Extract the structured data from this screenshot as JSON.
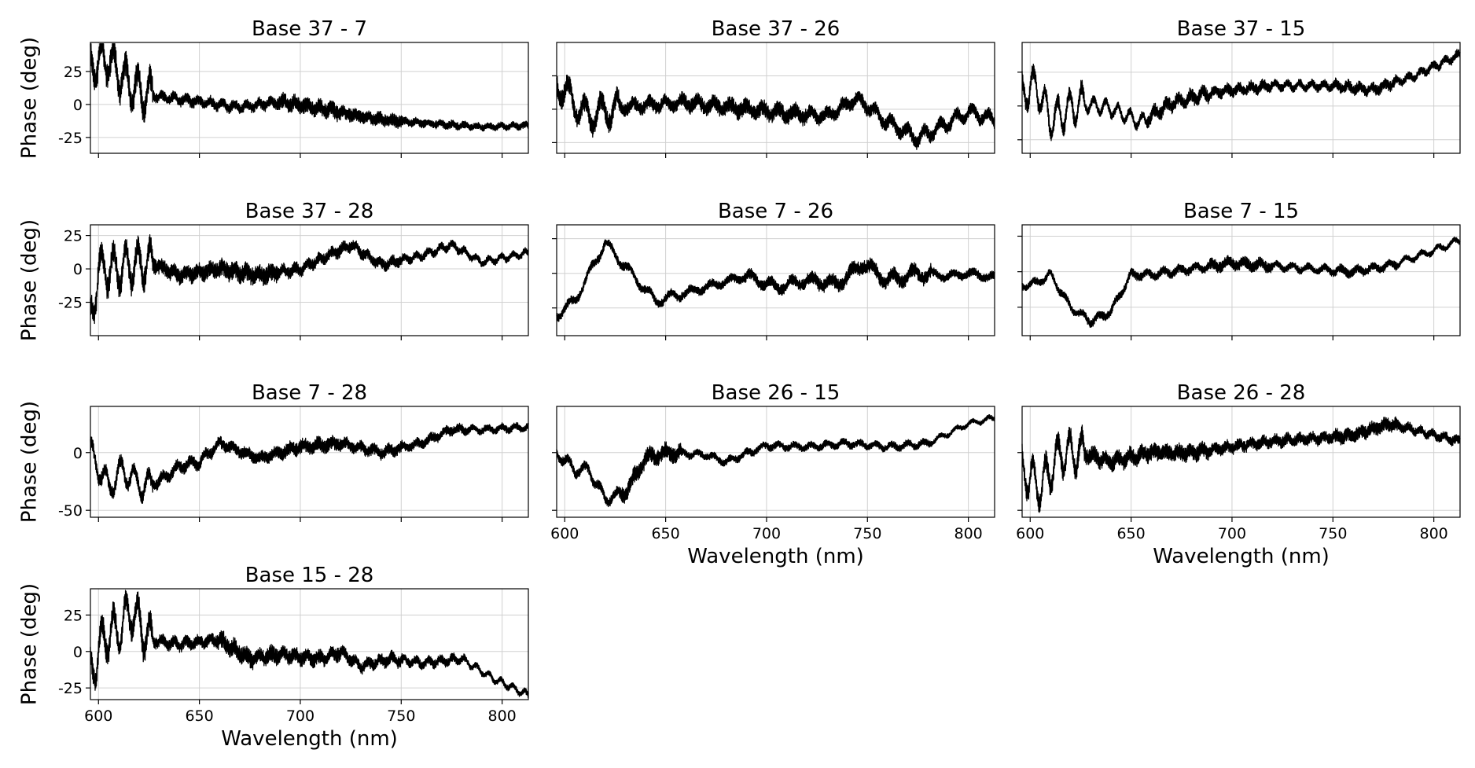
{
  "figure": {
    "background": "#ffffff",
    "line_color": "#000000",
    "grid_color": "#d0d0d0"
  },
  "chart_data": [
    {
      "type": "line",
      "title": "Base 37 - 7",
      "xlabel": "",
      "ylabel": "Phase (deg)",
      "xlim": [
        596,
        813
      ],
      "ylim": [
        -37,
        47
      ],
      "xticks": [
        600,
        650,
        700,
        750,
        800
      ],
      "xtick_labels_shown": false,
      "yticks": [
        -25,
        0,
        25
      ],
      "ytick_labels_shown": true,
      "grid": true,
      "trend": {
        "x": [
          596,
          605,
          612,
          620,
          630,
          650,
          670,
          690,
          710,
          730,
          750,
          770,
          790,
          813
        ],
        "y": [
          30,
          35,
          20,
          10,
          6,
          2,
          -2,
          2,
          -3,
          -9,
          -13,
          -15,
          -17,
          -16
        ]
      },
      "noise": {
        "high_freq_amp": [
          20,
          8,
          8,
          12,
          10,
          6,
          5
        ],
        "osc_amp": [
          14,
          2,
          2,
          2,
          1,
          1,
          1
        ],
        "osc_period_nm": 6
      }
    },
    {
      "type": "line",
      "title": "Base 37 - 26",
      "xlabel": "",
      "ylabel": "",
      "xlim": [
        596,
        813
      ],
      "ylim": [
        -33,
        50
      ],
      "xticks": [
        600,
        650,
        700,
        750,
        800
      ],
      "xtick_labels_shown": false,
      "yticks": [
        -25,
        0,
        25
      ],
      "ytick_labels_shown": false,
      "grid": true,
      "trend": {
        "x": [
          596,
          602,
          610,
          630,
          660,
          690,
          710,
          730,
          745,
          760,
          775,
          790,
          800,
          813
        ],
        "y": [
          20,
          10,
          -5,
          2,
          5,
          0,
          -3,
          -5,
          8,
          -10,
          -22,
          -10,
          -2,
          -8
        ]
      },
      "noise": {
        "high_freq_amp": [
          15,
          10,
          12,
          12,
          10,
          10,
          9
        ],
        "osc_amp": [
          10,
          3,
          3,
          3,
          3,
          4,
          4
        ],
        "osc_period_nm": 8
      }
    },
    {
      "type": "line",
      "title": "Base 37 - 15",
      "xlabel": "",
      "ylabel": "",
      "xlim": [
        596,
        813
      ],
      "ylim": [
        -35,
        47
      ],
      "xticks": [
        600,
        650,
        700,
        750,
        800
      ],
      "xtick_labels_shown": false,
      "yticks": [
        -25,
        0,
        25
      ],
      "ytick_labels_shown": false,
      "grid": true,
      "trend": {
        "x": [
          596,
          603,
          610,
          625,
          640,
          655,
          670,
          690,
          720,
          750,
          770,
          790,
          813
        ],
        "y": [
          10,
          15,
          -10,
          2,
          -2,
          -12,
          2,
          10,
          15,
          15,
          12,
          22,
          38
        ]
      },
      "noise": {
        "high_freq_amp": [
          12,
          6,
          10,
          8,
          6,
          8,
          6
        ],
        "osc_amp": [
          12,
          5,
          3,
          2,
          2,
          2,
          2
        ],
        "osc_period_nm": 6
      }
    },
    {
      "type": "line",
      "title": "Base 37 - 28",
      "xlabel": "",
      "ylabel": "Phase (deg)",
      "xlim": [
        596,
        813
      ],
      "ylim": [
        -50,
        33
      ],
      "xticks": [
        600,
        650,
        700,
        750,
        800
      ],
      "xtick_labels_shown": false,
      "yticks": [
        -25,
        0,
        25
      ],
      "ytick_labels_shown": true,
      "grid": true,
      "trend": {
        "x": [
          596,
          600,
          610,
          625,
          640,
          660,
          680,
          700,
          725,
          740,
          760,
          775,
          790,
          813
        ],
        "y": [
          -40,
          0,
          0,
          5,
          -5,
          0,
          -5,
          0,
          18,
          3,
          10,
          18,
          5,
          12
        ]
      },
      "noise": {
        "high_freq_amp": [
          18,
          12,
          14,
          9,
          8,
          6,
          5
        ],
        "osc_amp": [
          14,
          2,
          2,
          2,
          2,
          2,
          2
        ],
        "osc_period_nm": 6
      }
    },
    {
      "type": "line",
      "title": "Base 7 - 26",
      "xlabel": "",
      "ylabel": "",
      "xlim": [
        596,
        813
      ],
      "ylim": [
        -45,
        35
      ],
      "xticks": [
        600,
        650,
        700,
        750,
        800
      ],
      "xtick_labels_shown": false,
      "yticks": [
        -25,
        0,
        25
      ],
      "ytick_labels_shown": false,
      "grid": true,
      "trend": {
        "x": [
          596,
          605,
          620,
          630,
          645,
          665,
          690,
          705,
          720,
          735,
          748,
          760,
          775,
          790,
          800,
          813
        ],
        "y": [
          -30,
          -20,
          22,
          5,
          -20,
          -12,
          -2,
          -10,
          -5,
          -8,
          7,
          -5,
          0,
          -2,
          0,
          -3
        ]
      },
      "noise": {
        "high_freq_amp": [
          6,
          6,
          6,
          8,
          10,
          10,
          6
        ],
        "osc_amp": [
          3,
          3,
          2,
          3,
          3,
          4,
          2
        ],
        "osc_period_nm": 10
      }
    },
    {
      "type": "line",
      "title": "Base 7 - 15",
      "xlabel": "",
      "ylabel": "",
      "xlim": [
        596,
        813
      ],
      "ylim": [
        -45,
        33
      ],
      "xticks": [
        600,
        650,
        700,
        750,
        800
      ],
      "xtick_labels_shown": false,
      "yticks": [
        -25,
        0,
        25
      ],
      "ytick_labels_shown": false,
      "grid": true,
      "trend": {
        "x": [
          596,
          603,
          610,
          620,
          630,
          640,
          650,
          660,
          680,
          700,
          720,
          740,
          760,
          780,
          800,
          813
        ],
        "y": [
          -10,
          -8,
          -2,
          -25,
          -35,
          -28,
          -2,
          -2,
          2,
          6,
          4,
          2,
          0,
          5,
          15,
          22
        ]
      },
      "noise": {
        "high_freq_amp": [
          5,
          6,
          6,
          8,
          5,
          6,
          4
        ],
        "osc_amp": [
          2,
          2,
          2,
          2,
          2,
          2,
          2
        ],
        "osc_period_nm": 8
      }
    },
    {
      "type": "line",
      "title": "Base 7 - 28",
      "xlabel": "",
      "ylabel": "Phase (deg)",
      "xlim": [
        596,
        813
      ],
      "ylim": [
        -56,
        40
      ],
      "xticks": [
        600,
        650,
        700,
        750,
        800
      ],
      "xtick_labels_shown": false,
      "yticks": [
        -50,
        0
      ],
      "ytick_labels_shown": true,
      "grid": true,
      "trend": {
        "x": [
          596,
          605,
          612,
          622,
          630,
          640,
          650,
          660,
          680,
          700,
          720,
          740,
          760,
          775,
          790,
          813
        ],
        "y": [
          0,
          -30,
          -15,
          -30,
          -25,
          -12,
          -8,
          8,
          -5,
          5,
          8,
          0,
          8,
          20,
          20,
          22
        ]
      },
      "noise": {
        "high_freq_amp": [
          12,
          10,
          10,
          12,
          10,
          8,
          6
        ],
        "osc_amp": [
          10,
          3,
          2,
          2,
          2,
          2,
          2
        ],
        "osc_period_nm": 7
      }
    },
    {
      "type": "line",
      "title": "Base 26 - 15",
      "xlabel": "Wavelength (nm)",
      "ylabel": "",
      "xlim": [
        596,
        813
      ],
      "ylim": [
        -56,
        40
      ],
      "xticks": [
        600,
        650,
        700,
        750,
        800
      ],
      "xtick_labels_shown": true,
      "yticks": [
        -50,
        0
      ],
      "ytick_labels_shown": false,
      "grid": true,
      "trend": {
        "x": [
          596,
          605,
          612,
          620,
          630,
          640,
          650,
          670,
          680,
          700,
          720,
          740,
          760,
          780,
          800,
          813
        ],
        "y": [
          0,
          -15,
          -15,
          -40,
          -35,
          -5,
          0,
          -2,
          -8,
          6,
          5,
          8,
          5,
          8,
          25,
          30
        ]
      },
      "noise": {
        "high_freq_amp": [
          8,
          14,
          6,
          6,
          6,
          6,
          4
        ],
        "osc_amp": [
          4,
          3,
          2,
          2,
          2,
          2,
          2
        ],
        "osc_period_nm": 8
      }
    },
    {
      "type": "line",
      "title": "Base 26 - 28",
      "xlabel": "Wavelength (nm)",
      "ylabel": "",
      "xlim": [
        596,
        813
      ],
      "ylim": [
        -56,
        40
      ],
      "xticks": [
        600,
        650,
        700,
        750,
        800
      ],
      "xtick_labels_shown": true,
      "yticks": [
        -50,
        0
      ],
      "ytick_labels_shown": false,
      "grid": true,
      "trend": {
        "x": [
          596,
          605,
          615,
          625,
          640,
          660,
          680,
          700,
          720,
          740,
          760,
          778,
          790,
          800,
          813
        ],
        "y": [
          -15,
          -30,
          0,
          0,
          -8,
          0,
          0,
          5,
          10,
          12,
          15,
          25,
          20,
          15,
          10
        ]
      },
      "noise": {
        "high_freq_amp": [
          18,
          14,
          14,
          10,
          10,
          12,
          8
        ],
        "osc_amp": [
          16,
          3,
          2,
          2,
          2,
          2,
          2
        ],
        "osc_period_nm": 6
      }
    },
    {
      "type": "line",
      "title": "Base 15 - 28",
      "xlabel": "Wavelength (nm)",
      "ylabel": "Phase (deg)",
      "xlim": [
        596,
        813
      ],
      "ylim": [
        -33,
        43
      ],
      "xticks": [
        600,
        650,
        700,
        750,
        800
      ],
      "xtick_labels_shown": true,
      "yticks": [
        -25,
        0,
        25
      ],
      "ytick_labels_shown": true,
      "grid": true,
      "trend": {
        "x": [
          596,
          603,
          610,
          616,
          625,
          640,
          660,
          675,
          690,
          710,
          720,
          730,
          745,
          760,
          780,
          795,
          813
        ],
        "y": [
          -15,
          10,
          15,
          28,
          8,
          5,
          8,
          -5,
          -2,
          -5,
          0,
          -10,
          -5,
          -8,
          -5,
          -18,
          -30
        ]
      },
      "noise": {
        "high_freq_amp": [
          16,
          8,
          12,
          10,
          8,
          6,
          4
        ],
        "osc_amp": [
          14,
          2,
          2,
          2,
          2,
          2,
          2
        ],
        "osc_period_nm": 6
      }
    }
  ]
}
